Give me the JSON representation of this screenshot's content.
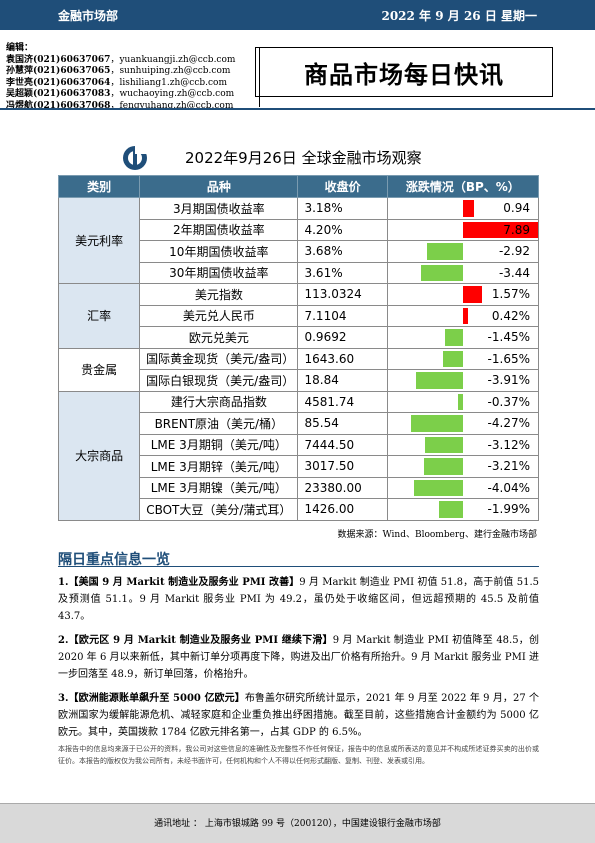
{
  "header": {
    "department": "金融市场部",
    "date": "2022 年 9 月 26 日  星期一"
  },
  "editors": {
    "label": "编辑：",
    "rows": [
      {
        "name": "袁国济",
        "phone": "(021)60637067",
        "email": "yuankuangji.zh@ccb.com"
      },
      {
        "name": "孙慧萍",
        "phone": "(021)60637065",
        "email": "sunhuiping.zh@ccb.com"
      },
      {
        "name": "李世亮",
        "phone": "(021)60637064",
        "email": "lishiliang1.zh@ccb.com"
      },
      {
        "name": "吴超颖",
        "phone": "(021)60637083",
        "email": "wuchaoying.zh@ccb.com"
      },
      {
        "name": "冯煜航",
        "phone": "(021)60637068",
        "email": "fengyuhang.zh@ccb.com"
      }
    ]
  },
  "report_title": "商品市场每日快讯",
  "table": {
    "title": "2022年9月26日  全球金融市场观察",
    "headers": [
      "类别",
      "品种",
      "收盘价",
      "涨跌情况（BP、%）"
    ],
    "categories": [
      {
        "name": "美元利率",
        "rows": [
          {
            "item": "3月期国债收益率",
            "close": "3.18%",
            "change": "0.94",
            "value": 0.94
          },
          {
            "item": "2年期国债收益率",
            "close": "4.20%",
            "change": "7.89",
            "value": 7.89
          },
          {
            "item": "10年期国债收益率",
            "close": "3.68%",
            "change": "-2.92",
            "value": -2.92
          },
          {
            "item": "30年期国债收益率",
            "close": "3.61%",
            "change": "-3.44",
            "value": -3.44
          }
        ]
      },
      {
        "name": "汇率",
        "rows": [
          {
            "item": "美元指数",
            "close": "113.0324",
            "change": "1.57%",
            "value": 1.57
          },
          {
            "item": "美元兑人民币",
            "close": "7.1104",
            "change": "0.42%",
            "value": 0.42
          },
          {
            "item": "欧元兑美元",
            "close": "0.9692",
            "change": "-1.45%",
            "value": -1.45
          }
        ]
      },
      {
        "name": "贵金属",
        "rows": [
          {
            "item": "国际黄金现货（美元/盎司）",
            "close": "1643.60",
            "change": "-1.65%",
            "value": -1.65
          },
          {
            "item": "国际白银现货（美元/盎司）",
            "close": "18.84",
            "change": "-3.91%",
            "value": -3.91
          }
        ]
      },
      {
        "name": "大宗商品",
        "rows": [
          {
            "item": "建行大宗商品指数",
            "close": "4581.74",
            "change": "-0.37%",
            "value": -0.37
          },
          {
            "item": "BRENT原油（美元/桶）",
            "close": "85.54",
            "change": "-4.27%",
            "value": -4.27
          },
          {
            "item": "LME 3月期铜（美元/吨）",
            "close": "7444.50",
            "change": "-3.12%",
            "value": -3.12
          },
          {
            "item": "LME 3月期锌（美元/吨）",
            "close": "3017.50",
            "change": "-3.21%",
            "value": -3.21
          },
          {
            "item": "LME 3月期镍（美元/吨）",
            "close": "23380.00",
            "change": "-4.04%",
            "value": -4.04
          },
          {
            "item": "CBOT大豆（美分/蒲式耳）",
            "close": "1426.00",
            "change": "-1.99%",
            "value": -1.99
          }
        ]
      }
    ],
    "source": "数据来源：Wind、Bloomberg、建行金融市场部"
  },
  "section_title": "隔日重点信息一览",
  "news": [
    {
      "headline": "1.【美国 9 月 Markit 制造业及服务业 PMI 改善】",
      "body": "9 月 Markit 制造业 PMI 初值 51.8，高于前值 51.5 及预测值 51.1。9 月 Markit 服务业 PMI 为 49.2，虽仍处于收缩区间，但远超预期的 45.5 及前值 43.7。"
    },
    {
      "headline": "2.【欧元区 9 月 Markit 制造业及服务业 PMI 继续下滑】",
      "body": "9 月 Markit 制造业 PMI 初值降至 48.5，创 2020 年 6 月以来新低，其中新订单分项再度下降，购进及出厂价格有所抬升。9 月 Markit 服务业 PMI 进一步回落至 48.9，新订单回落，价格抬升。"
    },
    {
      "headline": "3.【欧洲能源账单飙升至 5000 亿欧元】",
      "body": "布鲁盖尔研究所统计显示，2021 年 9 月至 2022 年 9 月，27 个欧洲国家为缓解能源危机、减轻家庭和企业重负推出纾困措施。截至目前，这些措施合计金额约为 5000 亿欧元。其中，英国拨款 1784 亿欧元排名第一，占其 GDP 的 6.5%。"
    }
  ],
  "disclaimer": "本报告中的信息均来源于已公开的资料，我公司对这些信息的准确性及完整性不作任何保证，报告中的信息或所表达的意见并不构成所述证券买卖的出价或征价。本报告的版权仅为我公司所有，未经书面许可，任何机构和个人不得以任何形式翻版、复制、刊登、发表或引用。",
  "footer": {
    "address": "通讯地址 ： 上海市银城路 99 号（200120），中国建设银行金融市场部"
  },
  "colors": {
    "header": "#1f4e79",
    "positive": "#ff0000",
    "negative": "#7ccf4a"
  }
}
